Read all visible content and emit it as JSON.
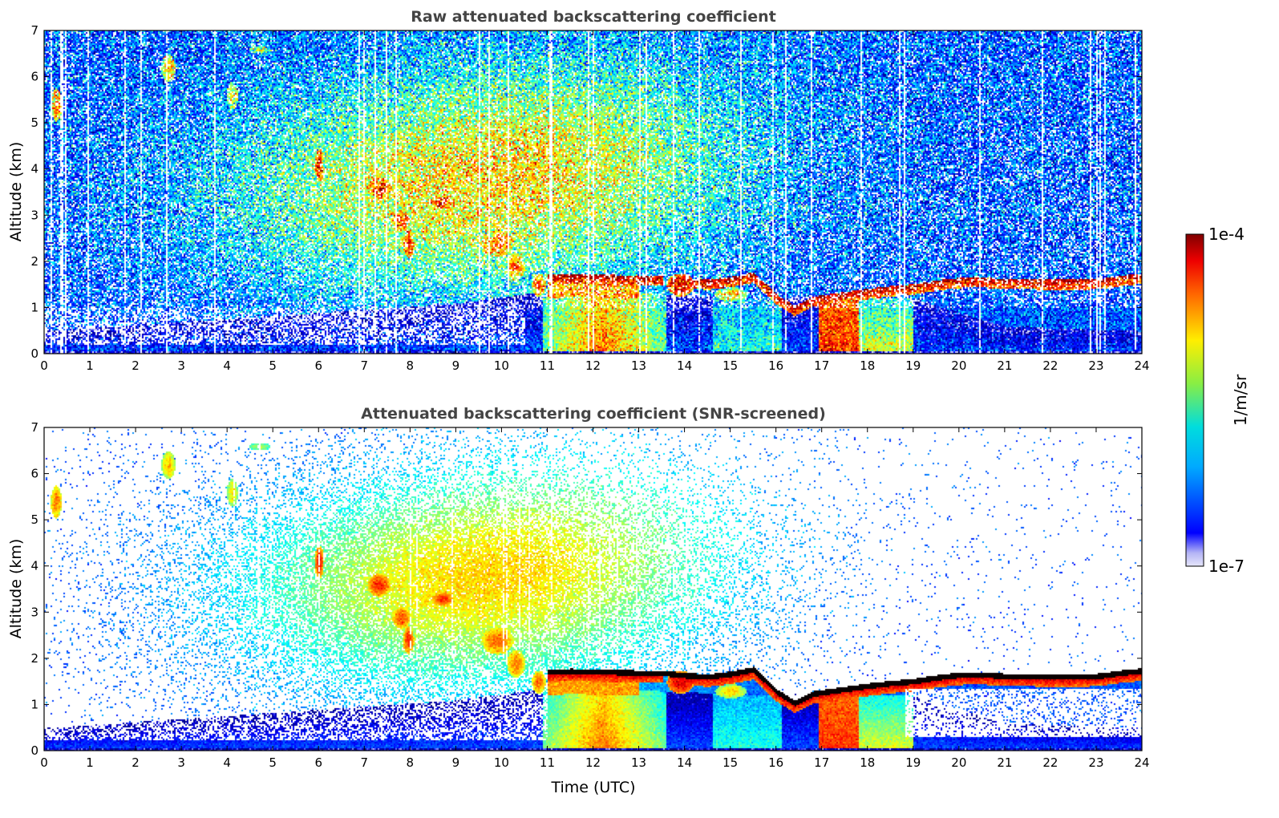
{
  "chart_data": [
    {
      "type": "heatmap",
      "title": "Raw attenuated backscattering coefficient",
      "xlabel": "",
      "ylabel": "Altitude (km)",
      "xlim": [
        0,
        24
      ],
      "ylim": [
        0,
        7
      ],
      "xticks": [
        0,
        1,
        2,
        3,
        4,
        5,
        6,
        7,
        8,
        9,
        10,
        11,
        12,
        13,
        14,
        15,
        16,
        17,
        18,
        19,
        20,
        21,
        22,
        23,
        24
      ],
      "yticks": [
        0,
        1,
        2,
        3,
        4,
        5,
        6,
        7
      ],
      "screened": false
    },
    {
      "type": "heatmap",
      "title": "Attenuated backscattering coefficient (SNR-screened)",
      "xlabel": "Time (UTC)",
      "ylabel": "Altitude (km)",
      "xlim": [
        0,
        24
      ],
      "ylim": [
        0,
        7
      ],
      "xticks": [
        0,
        1,
        2,
        3,
        4,
        5,
        6,
        7,
        8,
        9,
        10,
        11,
        12,
        13,
        14,
        15,
        16,
        17,
        18,
        19,
        20,
        21,
        22,
        23,
        24
      ],
      "yticks": [
        0,
        1,
        2,
        3,
        4,
        5,
        6,
        7
      ],
      "screened": true
    }
  ],
  "colorbar": {
    "label": "1/m/sr",
    "max_label": "1e-4",
    "min_label": "1e-7",
    "log_min": -7,
    "log_max": -4,
    "colormap": "jet"
  },
  "features": {
    "cloud_top_layer": [
      [
        11.0,
        1.72
      ],
      [
        11.5,
        1.74
      ],
      [
        12.0,
        1.73
      ],
      [
        12.5,
        1.72
      ],
      [
        13.0,
        1.7
      ],
      [
        13.5,
        1.7
      ],
      [
        14.0,
        1.65
      ],
      [
        14.5,
        1.62
      ],
      [
        15.0,
        1.68
      ],
      [
        15.5,
        1.78
      ],
      [
        16.0,
        1.3
      ],
      [
        16.4,
        1.05
      ],
      [
        16.8,
        1.25
      ],
      [
        17.5,
        1.35
      ],
      [
        18.0,
        1.42
      ],
      [
        18.5,
        1.48
      ],
      [
        19.0,
        1.52
      ],
      [
        19.5,
        1.6
      ],
      [
        20.0,
        1.66
      ],
      [
        20.5,
        1.67
      ],
      [
        21.0,
        1.63
      ],
      [
        21.5,
        1.63
      ],
      [
        22.0,
        1.62
      ],
      [
        22.5,
        1.62
      ],
      [
        23.0,
        1.63
      ],
      [
        23.5,
        1.7
      ],
      [
        24.0,
        1.75
      ]
    ],
    "boundary_layer_top": [
      [
        0,
        0.5
      ],
      [
        3,
        0.7
      ],
      [
        6,
        0.9
      ],
      [
        9,
        1.1
      ],
      [
        10.5,
        1.3
      ],
      [
        11,
        1.4
      ],
      [
        16,
        1.2
      ],
      [
        17,
        1.3
      ],
      [
        19,
        1.2
      ],
      [
        21,
        0.6
      ],
      [
        24,
        0.5
      ]
    ]
  }
}
